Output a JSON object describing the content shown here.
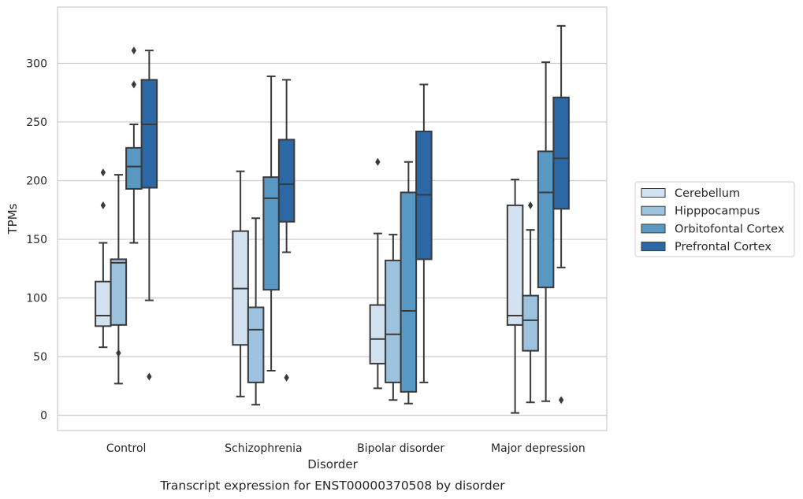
{
  "chart_data": {
    "type": "boxplot",
    "xlabel": "Disorder",
    "ylabel": "TPMs",
    "caption": "Transcript expression for ENST00000370508 by disorder",
    "ylim": [
      -13,
      348
    ],
    "yticks": [
      0,
      50,
      100,
      150,
      200,
      250,
      300
    ],
    "grid": "horizontal",
    "legend_position": "right",
    "categories": [
      "Control",
      "Schizophrenia",
      "Bipolar disorder",
      "Major depression"
    ],
    "series": [
      {
        "name": "Cerebellum",
        "color": "#d2e2f1",
        "boxes": [
          {
            "whislo": 58,
            "q1": 76,
            "med": 85,
            "q3": 114,
            "whishi": 147,
            "fliers": [
              179,
              207
            ]
          },
          {
            "whislo": 16,
            "q1": 60,
            "med": 108,
            "q3": 157,
            "whishi": 208,
            "fliers": []
          },
          {
            "whislo": 23,
            "q1": 44,
            "med": 65,
            "q3": 94,
            "whishi": 155,
            "fliers": [
              216
            ]
          },
          {
            "whislo": 2,
            "q1": 77,
            "med": 85,
            "q3": 179,
            "whishi": 201,
            "fliers": []
          }
        ]
      },
      {
        "name": "Hipppocampus",
        "color": "#9dc2dd",
        "boxes": [
          {
            "whislo": 27,
            "q1": 77,
            "med": 130,
            "q3": 133,
            "whishi": 205,
            "fliers": [
              53
            ]
          },
          {
            "whislo": 9,
            "q1": 28,
            "med": 73,
            "q3": 92,
            "whishi": 168,
            "fliers": []
          },
          {
            "whislo": 13,
            "q1": 28,
            "med": 69,
            "q3": 132,
            "whishi": 154,
            "fliers": []
          },
          {
            "whislo": 11,
            "q1": 55,
            "med": 81,
            "q3": 102,
            "whishi": 158,
            "fliers": [
              179
            ]
          }
        ]
      },
      {
        "name": "Orbitofontal Cortex",
        "color": "#5898c3",
        "boxes": [
          {
            "whislo": 147,
            "q1": 193,
            "med": 212,
            "q3": 228,
            "whishi": 248,
            "fliers": [
              282,
              311
            ]
          },
          {
            "whislo": 38,
            "q1": 107,
            "med": 185,
            "q3": 203,
            "whishi": 289,
            "fliers": []
          },
          {
            "whislo": 10,
            "q1": 20,
            "med": 89,
            "q3": 190,
            "whishi": 216,
            "fliers": []
          },
          {
            "whislo": 12,
            "q1": 109,
            "med": 190,
            "q3": 225,
            "whishi": 301,
            "fliers": []
          }
        ]
      },
      {
        "name": "Prefrontal Cortex",
        "color": "#2c68a6",
        "boxes": [
          {
            "whislo": 98,
            "q1": 194,
            "med": 248,
            "q3": 286,
            "whishi": 311,
            "fliers": [
              33
            ]
          },
          {
            "whislo": 139,
            "q1": 165,
            "med": 197,
            "q3": 235,
            "whishi": 286,
            "fliers": [
              32
            ]
          },
          {
            "whislo": 28,
            "q1": 133,
            "med": 188,
            "q3": 242,
            "whishi": 282,
            "fliers": []
          },
          {
            "whislo": 126,
            "q1": 176,
            "med": 219,
            "q3": 271,
            "whishi": 332,
            "fliers": [
              13
            ]
          }
        ]
      }
    ]
  }
}
